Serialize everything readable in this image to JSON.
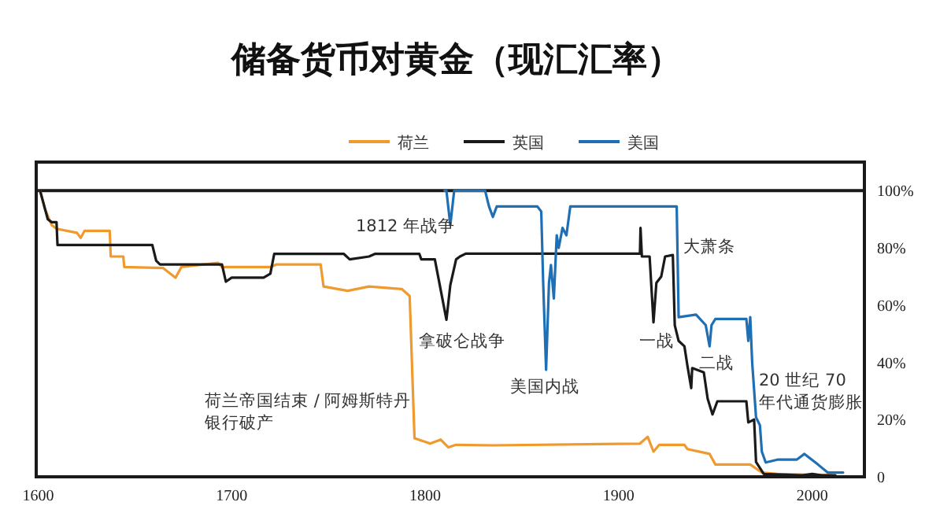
{
  "chart_data": {
    "type": "line",
    "title": "储备货币对黄金（现汇汇率）",
    "xlim": [
      1599,
      2027
    ],
    "xticks": [
      1600,
      1700,
      1800,
      1900,
      2000
    ],
    "ylim": [
      0,
      110
    ],
    "yticks": [
      0,
      {
        "value": 20,
        "label": "20%"
      },
      {
        "value": 40,
        "label": "40%"
      },
      {
        "value": 60,
        "label": "60%"
      },
      {
        "value": 80,
        "label": "80%"
      },
      {
        "value": 100,
        "label": "100%"
      }
    ],
    "grid": false,
    "legend": "top",
    "marker": "none",
    "line_style": "solid",
    "ref_lines": [
      {
        "axis": "y",
        "value": 100,
        "color": "#1a1a1a"
      }
    ],
    "series": [
      {
        "name": "荷兰",
        "color": "#ef9a2e",
        "x": [
          1601,
          1603.5,
          1607,
          1609.5,
          1620,
          1622,
          1624,
          1637,
          1637.5,
          1644,
          1644.5,
          1664.5,
          1671,
          1674,
          1693,
          1695,
          1720,
          1723,
          1746,
          1747.5,
          1760,
          1771,
          1788,
          1792,
          1794.5,
          1802.6,
          1808,
          1812,
          1816,
          1835,
          1911,
          1915,
          1918,
          1921,
          1934,
          1935.5,
          1947,
          1950,
          1968,
          1974,
          1982,
          2010
        ],
        "values": [
          100,
          93.6,
          88,
          86.7,
          85.3,
          83.5,
          86,
          86,
          77,
          77,
          73.3,
          73,
          69.6,
          73.3,
          74.8,
          73.3,
          73.3,
          74.2,
          74.2,
          66.5,
          65,
          66.5,
          65.6,
          63.2,
          13.5,
          11.6,
          13,
          10.3,
          11.2,
          11,
          11.6,
          14,
          8.8,
          11.2,
          11.2,
          9.7,
          8,
          4.3,
          4.3,
          1.5,
          1,
          0.5
        ]
      },
      {
        "name": "英国",
        "color": "#1a1a1a",
        "x": [
          1601,
          1605,
          1607,
          1609.5,
          1610,
          1659,
          1661,
          1663,
          1695,
          1697,
          1700,
          1716.5,
          1720,
          1722,
          1758,
          1761,
          1771,
          1774,
          1797,
          1798,
          1805,
          1811,
          1813,
          1816,
          1818,
          1821,
          1911,
          1911.3,
          1912,
          1916,
          1918,
          1919.5,
          1922,
          1924,
          1928,
          1929,
          1931,
          1934,
          1935.5,
          1937.5,
          1938,
          1944,
          1946,
          1948.5,
          1951,
          1966,
          1967,
          1970,
          1971,
          1975,
          1995,
          2000,
          2005,
          2012
        ],
        "values": [
          100,
          90,
          89,
          89,
          81,
          81,
          75.5,
          74.2,
          74.2,
          68.2,
          69.6,
          69.6,
          71,
          77.9,
          77.9,
          76,
          77,
          77.9,
          77.9,
          76,
          76,
          54.9,
          67,
          76,
          77,
          78,
          78,
          87,
          77,
          77,
          54,
          67.8,
          70,
          77,
          77.5,
          53,
          47.5,
          45.6,
          39,
          31,
          38,
          36.5,
          27.3,
          21.8,
          26.4,
          26.4,
          19,
          20,
          5.2,
          1,
          0.5,
          1,
          0.5,
          0.5
        ]
      },
      {
        "name": "美国",
        "color": "#1f6fb4",
        "x": [
          1810,
          1811,
          1813,
          1815,
          1831,
          1833,
          1835,
          1837,
          1858,
          1860,
          1861,
          1862.5,
          1864,
          1865,
          1866.5,
          1868,
          1869,
          1871,
          1873,
          1875,
          1930,
          1931,
          1940,
          1945,
          1947,
          1948,
          1950,
          1966,
          1967,
          1968,
          1969,
          1971,
          1973,
          1974,
          1976,
          1982,
          1992,
          1996,
          2003,
          2008,
          2016
        ],
        "values": [
          100,
          100,
          88,
          100,
          100,
          94.5,
          90.8,
          94.5,
          94.5,
          92.7,
          67.8,
          37.4,
          67.8,
          74,
          62.3,
          84.4,
          80,
          87,
          84.4,
          94.5,
          94.5,
          55.8,
          56.7,
          53,
          45.6,
          53,
          55.2,
          55.2,
          47.5,
          55.8,
          40,
          20.8,
          18,
          8.8,
          5,
          6,
          6,
          8,
          4.3,
          1.5,
          1.5
        ]
      }
    ],
    "annotations": [
      "1812 年战争",
      "拿破仑战争",
      "美国内战",
      "一战",
      "大萧条",
      "二战",
      "20 世纪 70 年代通货膨胀",
      "荷兰帝国结束 / 阿姆斯特丹银行破产"
    ]
  }
}
